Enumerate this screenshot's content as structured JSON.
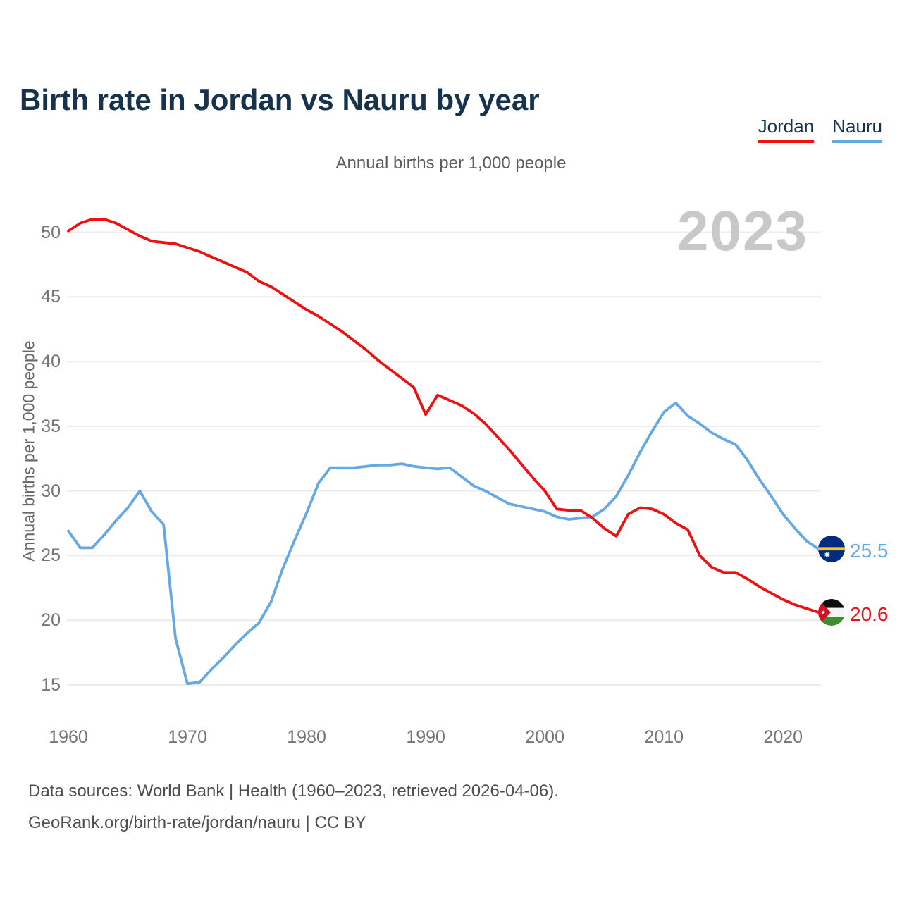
{
  "title": "Birth rate in Jordan vs Nauru by year",
  "subtitle": "Annual births per 1,000 people",
  "watermark": "2023",
  "y_axis_label": "Annual births per 1,000 people",
  "footer": {
    "line1": "Data sources: World Bank | Health (1960–2023, retrieved 2026-04-06).",
    "line2": "GeoRank.org/birth-rate/jordan/nauru | CC BY"
  },
  "chart_data": {
    "type": "line",
    "title": "Birth rate in Jordan vs Nauru by year",
    "xlabel": "",
    "ylabel": "Annual births per 1,000 people",
    "x_start": 1960,
    "x_end": 2023,
    "x_ticks": [
      1960,
      1970,
      1980,
      1990,
      2000,
      2010,
      2020
    ],
    "y_ticks": [
      15,
      20,
      25,
      30,
      35,
      40,
      45,
      50
    ],
    "ylim": [
      13.5,
      53
    ],
    "grid": "horizontal",
    "legend_position": "top-right",
    "series": [
      {
        "name": "Jordan",
        "color": "#ee1111",
        "end_label": "20.6",
        "flag": "jordan-flag",
        "values": [
          50.1,
          50.7,
          51.0,
          51.0,
          50.7,
          50.2,
          49.7,
          49.3,
          49.2,
          49.1,
          48.8,
          48.5,
          48.1,
          47.7,
          47.3,
          46.9,
          46.2,
          45.8,
          45.2,
          44.6,
          44.0,
          43.5,
          42.9,
          42.3,
          41.6,
          40.9,
          40.1,
          39.4,
          38.7,
          38.0,
          35.9,
          37.4,
          37.0,
          36.6,
          36.0,
          35.2,
          34.2,
          33.2,
          32.1,
          31.0,
          30.0,
          28.6,
          28.5,
          28.5,
          27.9,
          27.1,
          26.5,
          28.2,
          28.7,
          28.6,
          28.2,
          27.5,
          27.0,
          25.0,
          24.1,
          23.7,
          23.7,
          23.2,
          22.6,
          22.1,
          21.6,
          21.2,
          20.9,
          20.6
        ]
      },
      {
        "name": "Nauru",
        "color": "#66a8e2",
        "end_label": "25.5",
        "flag": "nauru-flag",
        "values": [
          26.9,
          25.6,
          25.6,
          26.6,
          27.7,
          28.7,
          30.0,
          28.4,
          27.4,
          18.6,
          15.1,
          15.2,
          16.2,
          17.1,
          18.1,
          19.0,
          19.8,
          21.4,
          24.0,
          26.2,
          28.3,
          30.6,
          31.8,
          31.8,
          31.8,
          31.9,
          32.0,
          32.0,
          32.1,
          31.9,
          31.8,
          31.7,
          31.8,
          31.1,
          30.4,
          30.0,
          29.5,
          29.0,
          28.8,
          28.6,
          28.4,
          28.0,
          27.8,
          27.9,
          28.0,
          28.6,
          29.6,
          31.2,
          33.0,
          34.6,
          36.1,
          36.8,
          35.8,
          35.2,
          34.5,
          34.0,
          33.6,
          32.4,
          30.9,
          29.6,
          28.2,
          27.1,
          26.1,
          25.5
        ]
      }
    ]
  }
}
